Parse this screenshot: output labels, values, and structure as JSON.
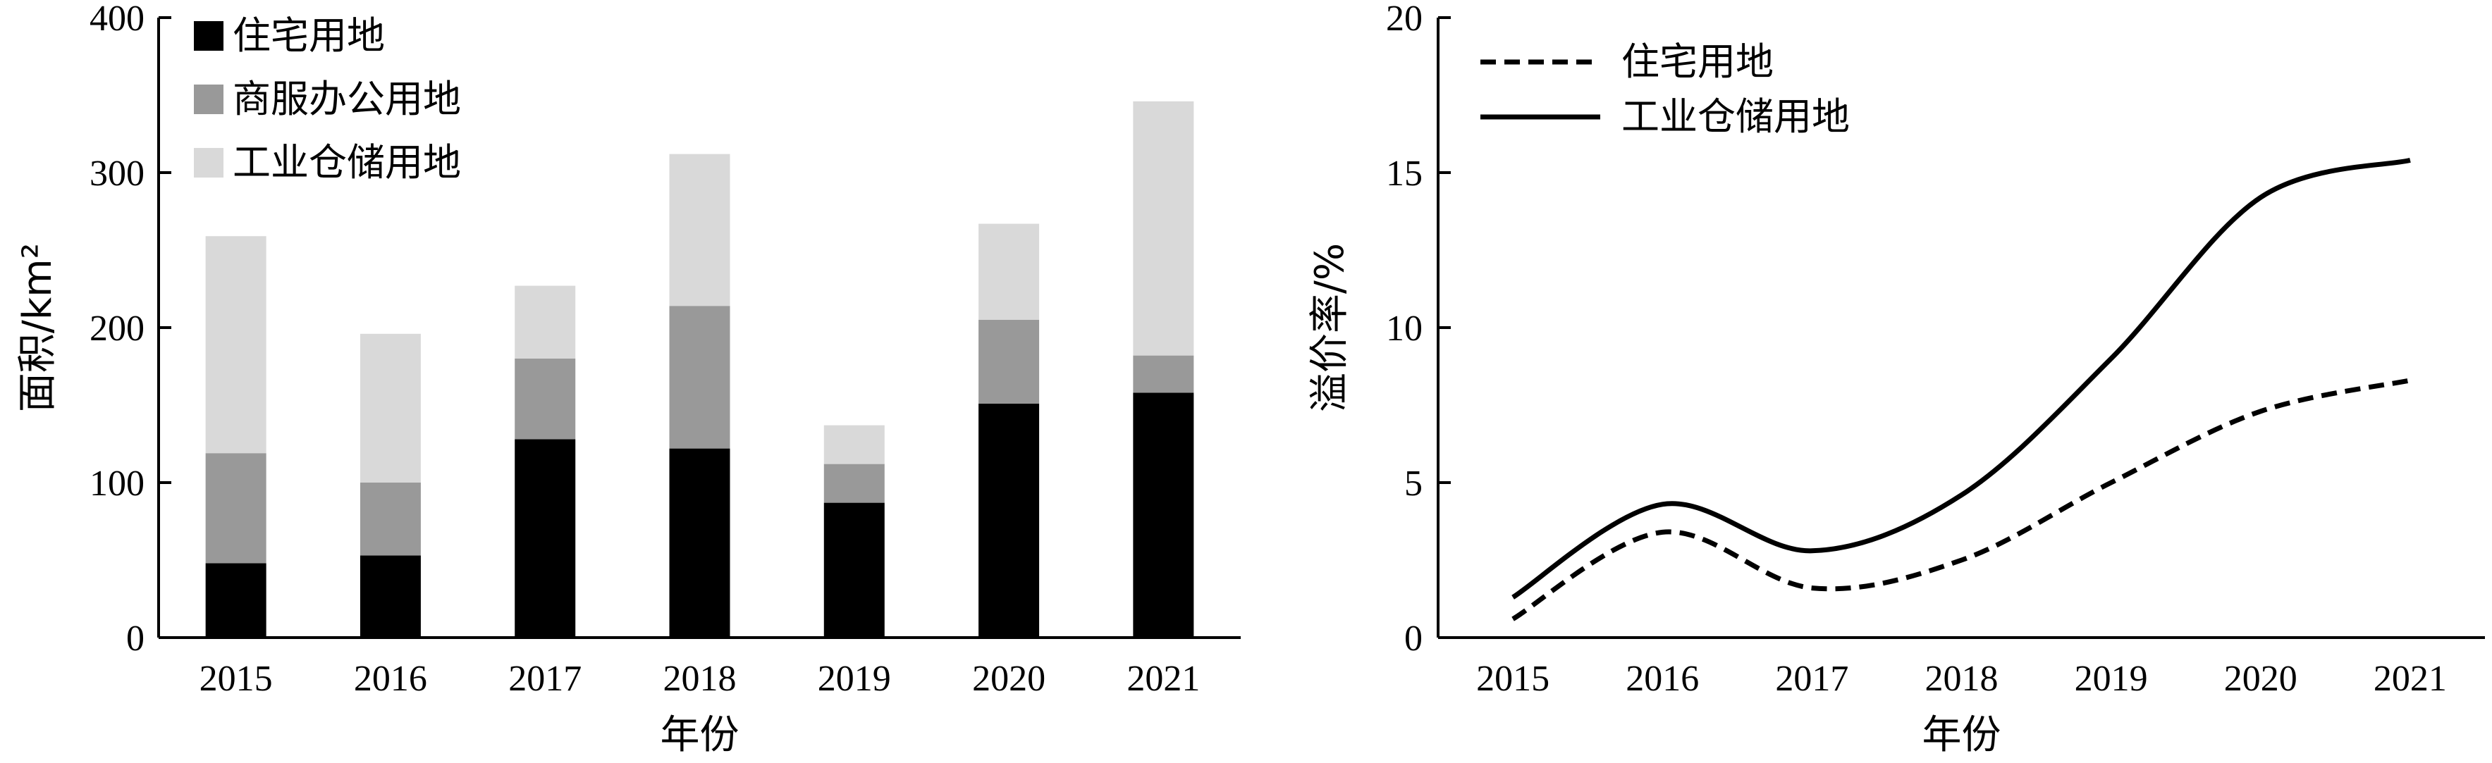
{
  "chart_data": [
    {
      "type": "bar",
      "stacked": true,
      "categories": [
        "2015",
        "2016",
        "2017",
        "2018",
        "2019",
        "2020",
        "2021"
      ],
      "series": [
        {
          "name": "住宅用地",
          "color": "#000000",
          "values": [
            48,
            53,
            128,
            122,
            87,
            151,
            158
          ]
        },
        {
          "name": "商服办公用地",
          "color": "#999999",
          "values": [
            71,
            47,
            52,
            92,
            25,
            54,
            24
          ]
        },
        {
          "name": "工业仓储用地",
          "color": "#d9d9d9",
          "values": [
            140,
            96,
            47,
            98,
            25,
            62,
            164
          ]
        }
      ],
      "ylabel": "面积/km²",
      "xlabel": "年份",
      "ylim": [
        0,
        400
      ],
      "yticks": [
        "0",
        "100",
        "200",
        "300",
        "400"
      ],
      "legend": "top-left",
      "grid": false
    },
    {
      "type": "line",
      "x": [
        "2015",
        "2016",
        "2017",
        "2018",
        "2019",
        "2020",
        "2021"
      ],
      "series": [
        {
          "name": "住宅用地",
          "style": "dashed",
          "color": "#000000",
          "values": [
            0.6,
            3.4,
            1.6,
            2.5,
            5.0,
            7.3,
            8.3
          ]
        },
        {
          "name": "工业仓储用地",
          "style": "solid",
          "color": "#000000",
          "values": [
            1.3,
            4.3,
            2.8,
            4.6,
            9.0,
            14.2,
            15.4
          ]
        }
      ],
      "ylabel": "溢价率/%",
      "xlabel": "年份",
      "ylim": [
        0,
        20
      ],
      "yticks": [
        "0",
        "5",
        "10",
        "15",
        "20"
      ],
      "legend": "top-left",
      "grid": false
    }
  ]
}
